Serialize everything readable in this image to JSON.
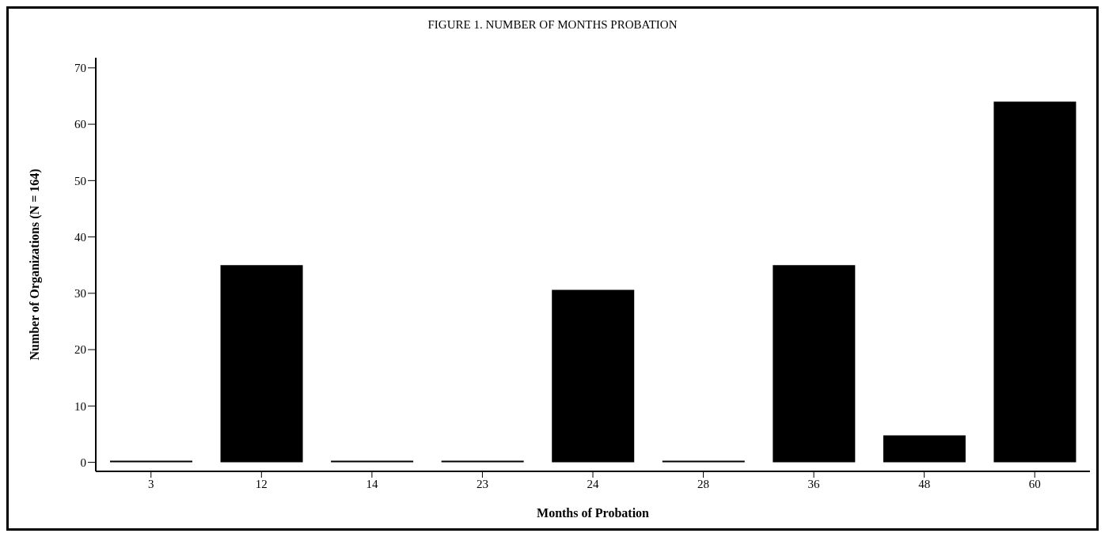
{
  "chart_data": {
    "type": "bar",
    "title": "FIGURE 1. NUMBER OF MONTHS PROBATION",
    "xlabel": "Months of Probation",
    "ylabel": "Number of Organizations (N = 164)",
    "categories": [
      "3",
      "12",
      "14",
      "23",
      "24",
      "28",
      "36",
      "48",
      "60"
    ],
    "values": [
      0.3,
      35,
      0.3,
      0.3,
      30.6,
      0.3,
      35,
      4.8,
      64
    ],
    "color": "#000000",
    "ylim": [
      -1.6,
      71.8
    ],
    "yticks": [
      0,
      10,
      20,
      30,
      40,
      50,
      60,
      70
    ]
  }
}
